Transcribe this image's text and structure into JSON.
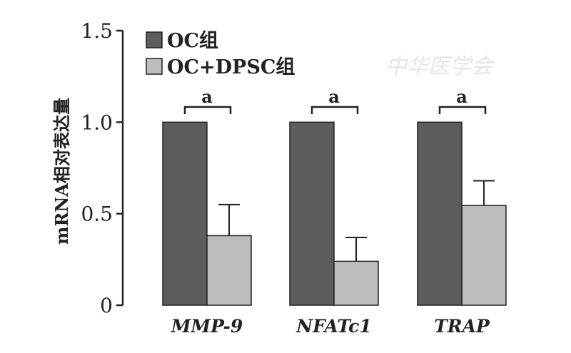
{
  "chart_data": {
    "type": "bar",
    "title": "",
    "xlabel": "",
    "ylabel": "mRNA相对表达量",
    "ylim": [
      0,
      1.5
    ],
    "yticks": [
      "0",
      "0.5",
      "1.0",
      "1.5"
    ],
    "ytick_values": [
      0,
      0.5,
      1.0,
      1.5
    ],
    "categories": [
      "MMP-9",
      "NFATc1",
      "TRAP"
    ],
    "series": [
      {
        "name": "OC组",
        "values": [
          1.0,
          1.0,
          1.0
        ],
        "errors": [
          0,
          0,
          0
        ],
        "color": "#5f5c5d"
      },
      {
        "name": "OC+DPSC组",
        "values": [
          0.38,
          0.24,
          0.545
        ],
        "errors": [
          0.17,
          0.13,
          0.135
        ],
        "color": "#bdbdbd"
      }
    ],
    "annotations": [
      "a",
      "a",
      "a"
    ],
    "legend_position": "top-left",
    "grid": false
  },
  "watermark": "中华医学会"
}
